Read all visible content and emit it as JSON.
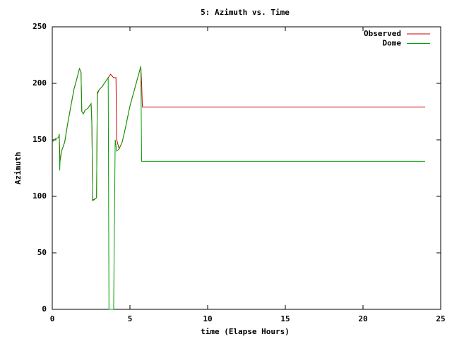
{
  "chart_data": {
    "type": "line",
    "title": "5: Azimuth vs. Time",
    "x_label": "time (Elapse Hours)",
    "y_label": "Azimuth",
    "x": [
      0,
      0.2,
      0.4,
      0.45,
      0.48,
      0.5,
      0.6,
      0.8,
      1.0,
      1.2,
      1.4,
      1.6,
      1.75,
      1.85,
      1.9,
      2.0,
      2.1,
      2.3,
      2.5,
      2.55,
      2.6,
      2.8,
      2.85,
      2.9,
      3.0,
      3.2,
      3.4,
      3.6,
      3.65,
      3.75,
      3.95,
      4.05,
      4.1,
      4.15,
      4.3,
      4.5,
      4.7,
      5.0,
      5.3,
      5.6,
      5.7,
      5.75,
      5.8,
      24
    ],
    "series": [
      {
        "name": "Observed",
        "color": "#cc0000",
        "values": [
          148,
          151,
          152,
          155,
          140,
          131,
          140,
          148,
          165,
          180,
          195,
          205,
          213,
          210,
          175,
          173,
          176,
          178,
          182,
          165,
          97,
          98,
          99,
          190,
          194,
          197,
          201,
          205,
          206,
          208,
          205,
          205,
          205,
          150,
          142,
          148,
          160,
          180,
          195,
          210,
          215,
          200,
          179,
          179
        ]
      },
      {
        "name": "Dome",
        "color": "#00a000",
        "values": [
          148,
          151,
          152,
          155,
          123,
          131,
          140,
          148,
          165,
          180,
          195,
          205,
          213,
          210,
          175,
          173,
          176,
          178,
          182,
          163,
          96,
          98,
          99,
          192,
          194,
          197,
          201,
          205,
          0,
          0,
          0,
          150,
          145,
          140,
          142,
          148,
          160,
          180,
          195,
          210,
          215,
          131,
          131,
          131
        ]
      }
    ],
    "xlim": [
      0,
      25
    ],
    "xticks": [
      0,
      5,
      10,
      15,
      20,
      25
    ],
    "ylim": [
      0,
      250
    ],
    "yticks": [
      0,
      50,
      100,
      150,
      200,
      250
    ],
    "legend": "top-right"
  }
}
